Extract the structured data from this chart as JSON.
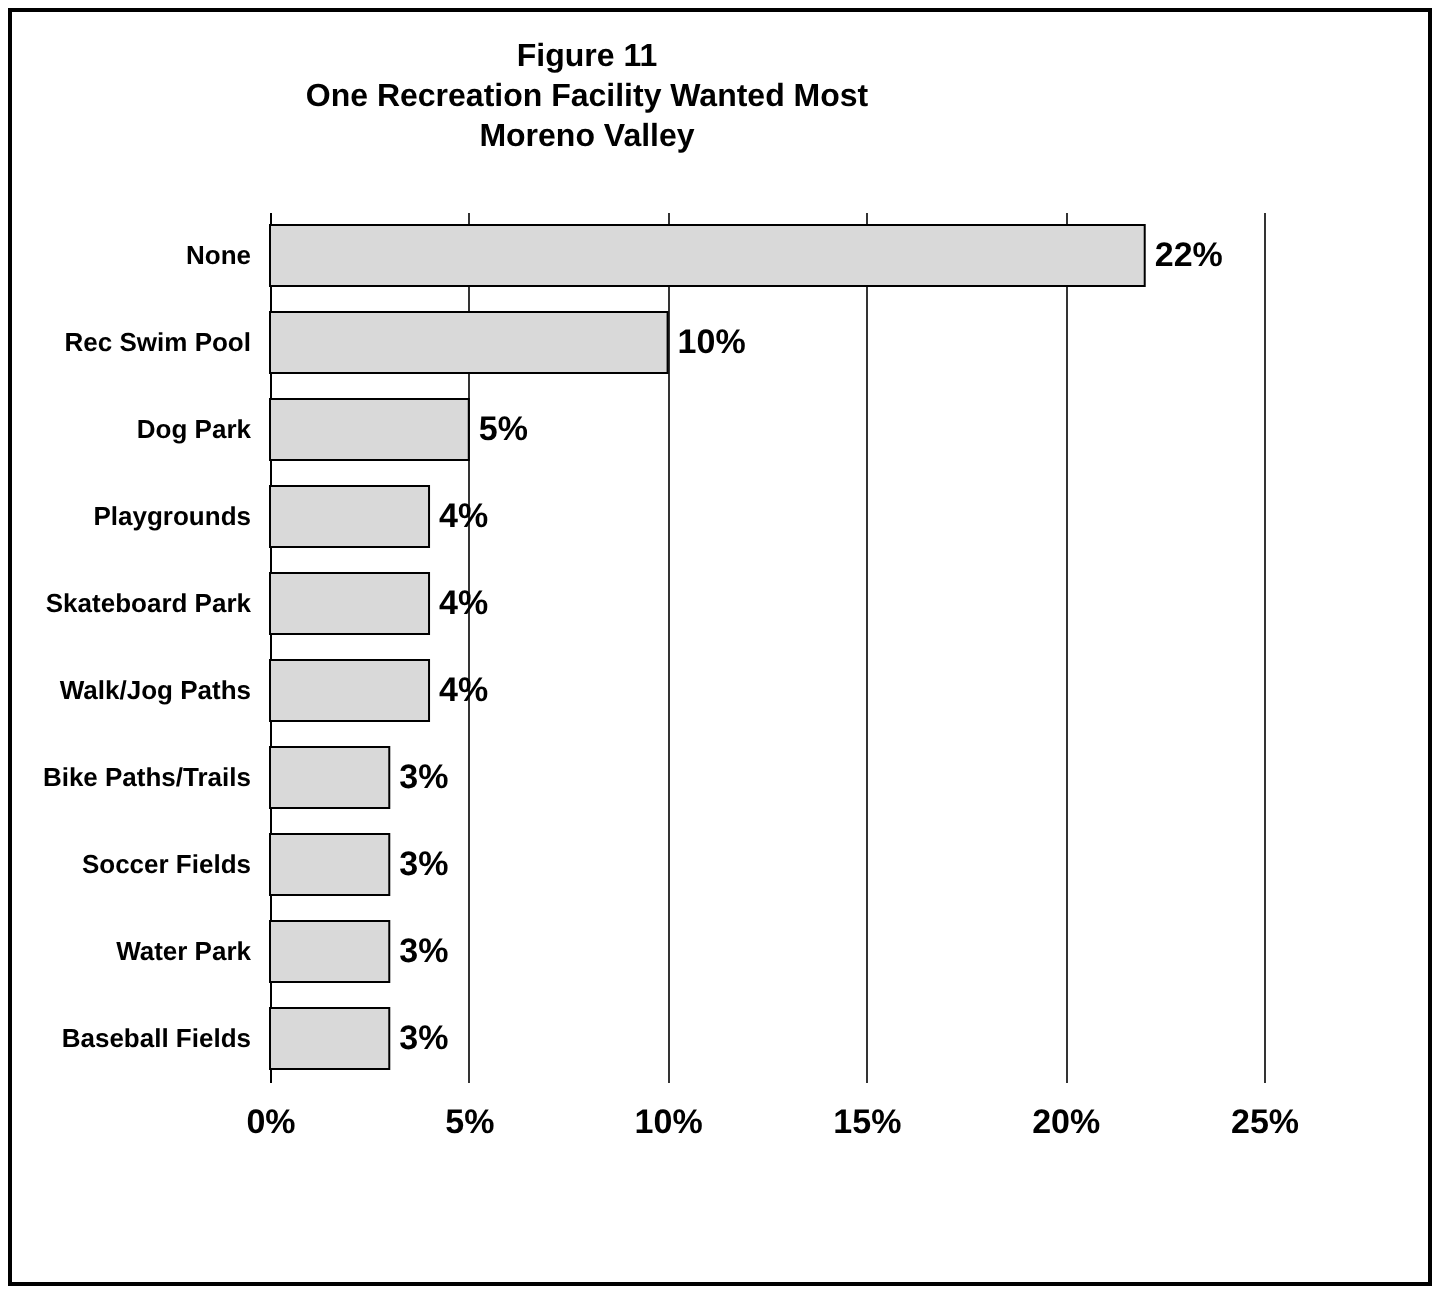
{
  "chart_data": {
    "type": "bar",
    "orientation": "horizontal",
    "title": "Figure 11\nOne Recreation Facility Wanted Most\nMoreno Valley",
    "categories": [
      "None",
      "Rec Swim Pool",
      "Dog Park",
      "Playgrounds",
      "Skateboard Park",
      "Walk/Jog Paths",
      "Bike Paths/Trails",
      "Soccer Fields",
      "Water Park",
      "Baseball Fields"
    ],
    "values": [
      22,
      10,
      5,
      4,
      4,
      4,
      3,
      3,
      3,
      3
    ],
    "value_labels": [
      "22%",
      "10%",
      "5%",
      "4%",
      "4%",
      "4%",
      "3%",
      "3%",
      "3%",
      "3%"
    ],
    "color": "#d9d9d9",
    "xlim": [
      0,
      25
    ],
    "xticks": [
      {
        "value": 0,
        "label": "0%"
      },
      {
        "value": 5,
        "label": "5%"
      },
      {
        "value": 10,
        "label": "10%"
      },
      {
        "value": 15,
        "label": "15%"
      },
      {
        "value": 20,
        "label": "20%"
      },
      {
        "value": 25,
        "label": "25%"
      }
    ],
    "grid": "x"
  }
}
